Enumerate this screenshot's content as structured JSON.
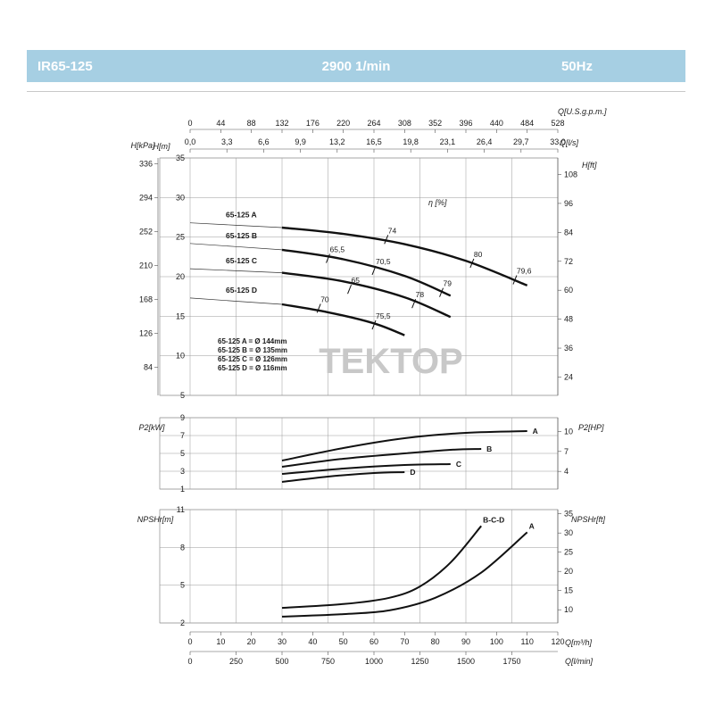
{
  "header": {
    "model": "IR65-125",
    "speed": "2900 1/min",
    "frequency": "50Hz",
    "bar_color": "#a6cfe3"
  },
  "watermark": "TEKTOP",
  "chart_data": [
    {
      "type": "line",
      "name": "head",
      "x_unit": "Q[m³/h]",
      "xlim": [
        0,
        120
      ],
      "ylim": [
        5,
        35
      ],
      "axes": {
        "top1_label": "Q[U.S.g.p.m.]",
        "top1_ticks": [
          "0",
          "44",
          "88",
          "132",
          "176",
          "220",
          "264",
          "308",
          "352",
          "396",
          "440",
          "484",
          "528"
        ],
        "top2_label": "Q[l/s]",
        "top2_ticks": [
          "0,0",
          "3,3",
          "6,6",
          "9,9",
          "13,2",
          "16,5",
          "19,8",
          "23,1",
          "26,4",
          "29,7",
          "33,0"
        ],
        "left_kpa_label": "H[kPa]",
        "left_kpa_ticks": [
          "336",
          "294",
          "252",
          "210",
          "168",
          "126",
          "84"
        ],
        "left_m_label": "H[m]",
        "left_m_ticks": [
          "35",
          "30",
          "25",
          "20",
          "15",
          "10",
          "5"
        ],
        "right_ft_label": "H[ft]",
        "right_ft_ticks": [
          "108",
          "96",
          "84",
          "72",
          "60",
          "48",
          "36",
          "24"
        ]
      },
      "efficiency_label": "η [%]",
      "series": [
        {
          "name": "65-125 A",
          "x": [
            0,
            30,
            50,
            70,
            90,
            110
          ],
          "y": [
            26.8,
            26.2,
            25.4,
            24.1,
            22.0,
            18.9
          ]
        },
        {
          "name": "65-125 B",
          "x": [
            0,
            30,
            50,
            70,
            85
          ],
          "y": [
            24.2,
            23.4,
            22.2,
            20.1,
            17.6
          ]
        },
        {
          "name": "65-125 C",
          "x": [
            0,
            30,
            50,
            70,
            85
          ],
          "y": [
            21.0,
            20.5,
            19.4,
            17.4,
            14.9
          ]
        },
        {
          "name": "65-125 D",
          "x": [
            0,
            30,
            45,
            60,
            70
          ],
          "y": [
            17.3,
            16.5,
            15.5,
            14.1,
            12.6
          ]
        }
      ],
      "efficiency_marks": [
        {
          "label": "74",
          "x": 64,
          "y": 24.7
        },
        {
          "label": "80",
          "x": 92,
          "y": 21.7
        },
        {
          "label": "79,6",
          "x": 106,
          "y": 19.6
        },
        {
          "label": "65,5",
          "x": 45,
          "y": 22.3
        },
        {
          "label": "70,5",
          "x": 60,
          "y": 20.8
        },
        {
          "label": "79",
          "x": 82,
          "y": 18.0
        },
        {
          "label": "65",
          "x": 52,
          "y": 18.4
        },
        {
          "label": "78",
          "x": 73,
          "y": 16.6
        },
        {
          "label": "70",
          "x": 42,
          "y": 16.0
        },
        {
          "label": "75,5",
          "x": 60,
          "y": 13.9
        }
      ],
      "diameters": [
        "65-125 A = Ø 144mm",
        "65-125 B = Ø 135mm",
        "65-125 C = Ø 126mm",
        "65-125 D = Ø 116mm"
      ]
    },
    {
      "type": "line",
      "name": "power",
      "xlim": [
        0,
        120
      ],
      "ylim": [
        1,
        9
      ],
      "left_label": "P2[kW]",
      "left_ticks": [
        "9",
        "7",
        "5",
        "3",
        "1"
      ],
      "right_label": "P2[HP]",
      "right_ticks": [
        "10",
        "7",
        "4"
      ],
      "series": [
        {
          "name": "A",
          "x": [
            30,
            50,
            70,
            90,
            110
          ],
          "y": [
            4.2,
            5.6,
            6.7,
            7.3,
            7.5
          ]
        },
        {
          "name": "B",
          "x": [
            30,
            50,
            70,
            85,
            95
          ],
          "y": [
            3.5,
            4.4,
            5.0,
            5.4,
            5.5
          ]
        },
        {
          "name": "C",
          "x": [
            30,
            50,
            70,
            85
          ],
          "y": [
            2.7,
            3.3,
            3.7,
            3.8
          ]
        },
        {
          "name": "D",
          "x": [
            30,
            45,
            60,
            70
          ],
          "y": [
            1.8,
            2.4,
            2.8,
            2.9
          ]
        }
      ]
    },
    {
      "type": "line",
      "name": "npsh",
      "xlim": [
        0,
        120
      ],
      "ylim": [
        2,
        11
      ],
      "left_label": "NPSHr[m]",
      "left_ticks": [
        "11",
        "8",
        "5",
        "2"
      ],
      "right_label": "NPSHr[ft]",
      "right_ticks": [
        "35",
        "30",
        "25",
        "20",
        "15",
        "10"
      ],
      "bottom1_label": "Q[m³/h]",
      "bottom1_ticks": [
        "0",
        "10",
        "20",
        "30",
        "40",
        "50",
        "60",
        "70",
        "80",
        "90",
        "100",
        "110",
        "120"
      ],
      "bottom2_label": "Q[l/min]",
      "bottom2_ticks": [
        "0",
        "250",
        "500",
        "750",
        "1000",
        "1250",
        "1500",
        "1750"
      ],
      "series": [
        {
          "name": "B-C-D",
          "x": [
            30,
            50,
            65,
            75,
            85,
            95
          ],
          "y": [
            3.2,
            3.5,
            4.0,
            4.9,
            6.8,
            9.7
          ]
        },
        {
          "name": "A",
          "x": [
            30,
            50,
            65,
            80,
            95,
            110
          ],
          "y": [
            2.5,
            2.7,
            3.0,
            4.0,
            6.0,
            9.2
          ]
        }
      ]
    }
  ]
}
